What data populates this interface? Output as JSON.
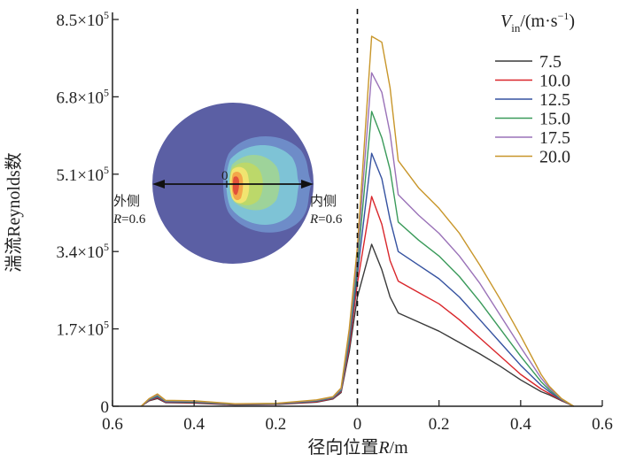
{
  "chart_data": {
    "type": "line",
    "title": "",
    "xlabel": "径向位置R/m",
    "xlabel_parts": {
      "prefix": "径向位置",
      "var": "R",
      "suffix": "/m"
    },
    "ylabel": "湍流Reynolds数",
    "xlim": [
      -0.6,
      0.6
    ],
    "ylim": [
      0,
      850000
    ],
    "x_ticks": [
      -0.6,
      -0.4,
      -0.2,
      0,
      0.2,
      0.4,
      0.6
    ],
    "x_tick_labels": [
      "0.6",
      "0.4",
      "0.2",
      "0",
      "0.2",
      "0.4",
      "0.6"
    ],
    "y_ticks": [
      0,
      170000,
      340000,
      510000,
      680000,
      850000
    ],
    "y_tick_labels": [
      {
        "mant": "0",
        "exp": ""
      },
      {
        "mant": "1.7×10",
        "exp": "5"
      },
      {
        "mant": "3.4×10",
        "exp": "5"
      },
      {
        "mant": "5.1×10",
        "exp": "5"
      },
      {
        "mant": "6.8×10",
        "exp": "5"
      },
      {
        "mant": "8.5×10",
        "exp": "5"
      }
    ],
    "grid": false,
    "reference_line": {
      "x": 0,
      "style": "dashed"
    },
    "legend": {
      "title_var": "V",
      "title_sub": "in",
      "title_unit": "/(m·s",
      "title_exp": "−1",
      "title_close": ")",
      "placement": "top-right"
    },
    "x": [
      -0.53,
      -0.51,
      -0.49,
      -0.47,
      -0.4,
      -0.3,
      -0.2,
      -0.1,
      -0.06,
      -0.04,
      -0.02,
      0.0,
      0.035,
      0.06,
      0.08,
      0.1,
      0.15,
      0.2,
      0.25,
      0.3,
      0.35,
      0.4,
      0.45,
      0.47,
      0.5,
      0.53
    ],
    "series": [
      {
        "name": "7.5",
        "color": "#3a3a3a",
        "values": [
          0,
          12000,
          17000,
          8000,
          7000,
          3000,
          4000,
          9000,
          16000,
          30000,
          120000,
          240000,
          356000,
          300000,
          240000,
          205000,
          185000,
          165000,
          140000,
          115000,
          88000,
          58000,
          32000,
          25000,
          12000,
          0
        ]
      },
      {
        "name": "10.0",
        "color": "#d9262b",
        "values": [
          0,
          13000,
          19000,
          9000,
          8000,
          3500,
          4500,
          10000,
          17000,
          32000,
          130000,
          270000,
          461000,
          400000,
          320000,
          275000,
          250000,
          225000,
          190000,
          150000,
          110000,
          70000,
          38000,
          28000,
          13000,
          0
        ]
      },
      {
        "name": "12.5",
        "color": "#3552a0",
        "values": [
          0,
          14000,
          21000,
          10000,
          9000,
          4000,
          5000,
          11000,
          18000,
          34000,
          140000,
          290000,
          556000,
          500000,
          410000,
          340000,
          310000,
          280000,
          240000,
          190000,
          140000,
          90000,
          46000,
          32000,
          14000,
          0
        ]
      },
      {
        "name": "15.0",
        "color": "#3a9a5a",
        "values": [
          0,
          15000,
          23000,
          11000,
          10000,
          4500,
          5500,
          12000,
          19000,
          36000,
          150000,
          310000,
          648000,
          590000,
          520000,
          405000,
          365000,
          330000,
          285000,
          230000,
          170000,
          110000,
          54000,
          36000,
          15000,
          0
        ]
      },
      {
        "name": "17.5",
        "color": "#9a72b8",
        "values": [
          0,
          16000,
          25000,
          12000,
          11000,
          5000,
          6000,
          13000,
          20000,
          38000,
          160000,
          330000,
          733000,
          690000,
          600000,
          465000,
          420000,
          380000,
          330000,
          270000,
          200000,
          130000,
          62000,
          40000,
          16000,
          0
        ]
      },
      {
        "name": "20.0",
        "color": "#c8962a",
        "values": [
          0,
          17000,
          27000,
          13000,
          12000,
          5500,
          6500,
          14000,
          21000,
          40000,
          170000,
          350000,
          813000,
          800000,
          700000,
          540000,
          480000,
          435000,
          380000,
          310000,
          235000,
          155000,
          70000,
          44000,
          17000,
          0
        ]
      }
    ],
    "inset": {
      "description": "cross-section contour of turbulent Reynolds number",
      "center_label": "0",
      "left_label": "外侧",
      "left_r_var": "R",
      "left_r_value": "=0.6",
      "right_label": "内侧",
      "right_r_var": "R",
      "right_r_value": "=0.6",
      "background_color": "#5b5fa4",
      "contour_colors": [
        "#6e8cc8",
        "#7ec3d6",
        "#9ed39a",
        "#bcd86a",
        "#f1e470",
        "#f3a64a",
        "#e2513a"
      ]
    }
  }
}
